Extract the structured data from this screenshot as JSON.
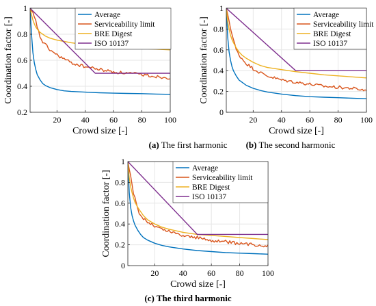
{
  "colors": {
    "average": "#0072BD",
    "serviceability": "#D95319",
    "bre": "#EDB120",
    "iso": "#7E2F8E"
  },
  "chart_data": [
    {
      "type": "line",
      "title": "",
      "caption_letter": "(a)",
      "caption_text": " The first harmonic",
      "xlabel": "Crowd size [-]",
      "ylabel": "Coordination factor [-]",
      "xlim": [
        1,
        100
      ],
      "ylim": [
        0.2,
        1.0
      ],
      "xticks": [
        20,
        40,
        60,
        80,
        100
      ],
      "yticks": [
        0.2,
        0.4,
        0.6,
        0.8,
        1.0
      ],
      "ytick_labels": [
        "0.2",
        "0.4",
        "0.6",
        "0.8",
        "1"
      ],
      "grid": true,
      "legend_position": "top-right",
      "series": [
        {
          "name": "Average",
          "color_key": "average",
          "noise": 0.0,
          "x": [
            1,
            2,
            3,
            4,
            5,
            6,
            8,
            10,
            12,
            15,
            20,
            25,
            30,
            40,
            50,
            60,
            70,
            80,
            90,
            100
          ],
          "y": [
            1.0,
            0.8,
            0.66,
            0.58,
            0.53,
            0.49,
            0.45,
            0.42,
            0.405,
            0.39,
            0.375,
            0.365,
            0.36,
            0.355,
            0.35,
            0.347,
            0.345,
            0.343,
            0.34,
            0.338
          ]
        },
        {
          "name": "Serviceability limit",
          "color_key": "serviceability",
          "noise": 0.012,
          "x": [
            1,
            3,
            5,
            8,
            10,
            15,
            20,
            25,
            30,
            40,
            50,
            60,
            70,
            80,
            90,
            100
          ],
          "y": [
            1.0,
            0.96,
            0.9,
            0.78,
            0.74,
            0.68,
            0.64,
            0.61,
            0.58,
            0.55,
            0.53,
            0.51,
            0.5,
            0.49,
            0.475,
            0.465
          ]
        },
        {
          "name": "BRE Digest",
          "color_key": "bre",
          "noise": 0.0,
          "x": [
            1,
            2,
            3,
            4,
            5,
            6,
            8,
            10,
            12,
            15,
            20,
            25,
            30,
            40,
            50,
            60,
            70,
            80,
            90,
            100
          ],
          "y": [
            1.0,
            0.95,
            0.91,
            0.88,
            0.855,
            0.84,
            0.815,
            0.8,
            0.785,
            0.77,
            0.755,
            0.745,
            0.735,
            0.72,
            0.71,
            0.7,
            0.695,
            0.69,
            0.685,
            0.68
          ]
        },
        {
          "name": "ISO 10137",
          "color_key": "iso",
          "noise": 0.0,
          "x": [
            1,
            47,
            100
          ],
          "y": [
            1.0,
            0.5,
            0.5
          ]
        }
      ]
    },
    {
      "type": "line",
      "title": "",
      "caption_letter": "(b)",
      "caption_text": " The second harmonic",
      "xlabel": "Crowd size [-]",
      "ylabel": "Coordination factor [-]",
      "xlim": [
        1,
        100
      ],
      "ylim": [
        0,
        1.0
      ],
      "xticks": [
        20,
        40,
        60,
        80,
        100
      ],
      "yticks": [
        0,
        0.2,
        0.4,
        0.6,
        0.8,
        1.0
      ],
      "ytick_labels": [
        "0",
        "0.2",
        "0.4",
        "0.6",
        "0.8",
        "1"
      ],
      "grid": true,
      "legend_position": "top-right",
      "series": [
        {
          "name": "Average",
          "color_key": "average",
          "noise": 0.0,
          "x": [
            1,
            2,
            3,
            4,
            5,
            6,
            8,
            10,
            12,
            15,
            20,
            25,
            30,
            40,
            50,
            60,
            70,
            80,
            90,
            100
          ],
          "y": [
            1.0,
            0.72,
            0.58,
            0.5,
            0.44,
            0.4,
            0.35,
            0.31,
            0.29,
            0.26,
            0.23,
            0.21,
            0.195,
            0.175,
            0.16,
            0.15,
            0.145,
            0.14,
            0.135,
            0.13
          ]
        },
        {
          "name": "Serviceability limit",
          "color_key": "serviceability",
          "noise": 0.015,
          "x": [
            1,
            3,
            5,
            8,
            10,
            15,
            20,
            25,
            30,
            40,
            50,
            60,
            70,
            80,
            90,
            100
          ],
          "y": [
            1.0,
            0.88,
            0.75,
            0.6,
            0.55,
            0.47,
            0.42,
            0.38,
            0.35,
            0.31,
            0.29,
            0.27,
            0.25,
            0.24,
            0.23,
            0.21
          ]
        },
        {
          "name": "BRE Digest",
          "color_key": "bre",
          "noise": 0.0,
          "x": [
            1,
            2,
            3,
            4,
            5,
            6,
            8,
            10,
            12,
            15,
            20,
            25,
            30,
            40,
            50,
            60,
            70,
            80,
            90,
            100
          ],
          "y": [
            1.0,
            0.87,
            0.8,
            0.74,
            0.7,
            0.67,
            0.62,
            0.58,
            0.55,
            0.52,
            0.48,
            0.45,
            0.43,
            0.41,
            0.39,
            0.375,
            0.36,
            0.35,
            0.34,
            0.33
          ]
        },
        {
          "name": "ISO 10137",
          "color_key": "iso",
          "noise": 0.0,
          "x": [
            1,
            50,
            100
          ],
          "y": [
            1.0,
            0.4,
            0.4
          ]
        }
      ]
    },
    {
      "type": "line",
      "title": "",
      "caption_letter": "(c)",
      "caption_text": " The third harmonic",
      "caption_all_bold": true,
      "xlabel": "Crowd size [-]",
      "ylabel": "Coordination factor [-]",
      "xlim": [
        1,
        100
      ],
      "ylim": [
        0,
        1.0
      ],
      "xticks": [
        20,
        40,
        60,
        80,
        100
      ],
      "yticks": [
        0,
        0.2,
        0.4,
        0.6,
        0.8,
        1.0
      ],
      "ytick_labels": [
        "0",
        "0.2",
        "0.4",
        "0.6",
        "0.8",
        "1"
      ],
      "grid": true,
      "legend_position": "top-right",
      "series": [
        {
          "name": "Average",
          "color_key": "average",
          "noise": 0.0,
          "x": [
            1,
            2,
            3,
            4,
            5,
            6,
            8,
            10,
            12,
            15,
            20,
            25,
            30,
            40,
            50,
            60,
            70,
            80,
            90,
            100
          ],
          "y": [
            1.0,
            0.7,
            0.56,
            0.48,
            0.43,
            0.39,
            0.34,
            0.3,
            0.27,
            0.245,
            0.215,
            0.195,
            0.18,
            0.16,
            0.145,
            0.135,
            0.125,
            0.12,
            0.115,
            0.11
          ]
        },
        {
          "name": "Serviceability limit",
          "color_key": "serviceability",
          "noise": 0.015,
          "x": [
            1,
            3,
            5,
            8,
            10,
            15,
            20,
            25,
            30,
            40,
            50,
            60,
            70,
            80,
            90,
            100
          ],
          "y": [
            1.0,
            0.85,
            0.7,
            0.54,
            0.48,
            0.42,
            0.38,
            0.35,
            0.33,
            0.29,
            0.27,
            0.24,
            0.23,
            0.21,
            0.2,
            0.19
          ]
        },
        {
          "name": "BRE Digest",
          "color_key": "bre",
          "noise": 0.0,
          "x": [
            1,
            2,
            3,
            4,
            5,
            6,
            8,
            10,
            12,
            15,
            20,
            25,
            30,
            40,
            50,
            60,
            70,
            80,
            90,
            100
          ],
          "y": [
            1.0,
            0.84,
            0.76,
            0.7,
            0.65,
            0.61,
            0.56,
            0.52,
            0.48,
            0.44,
            0.4,
            0.37,
            0.35,
            0.32,
            0.3,
            0.29,
            0.28,
            0.27,
            0.26,
            0.25
          ]
        },
        {
          "name": "ISO 10137",
          "color_key": "iso",
          "noise": 0.0,
          "x": [
            1,
            50,
            100
          ],
          "y": [
            1.0,
            0.3,
            0.3
          ]
        }
      ]
    }
  ]
}
